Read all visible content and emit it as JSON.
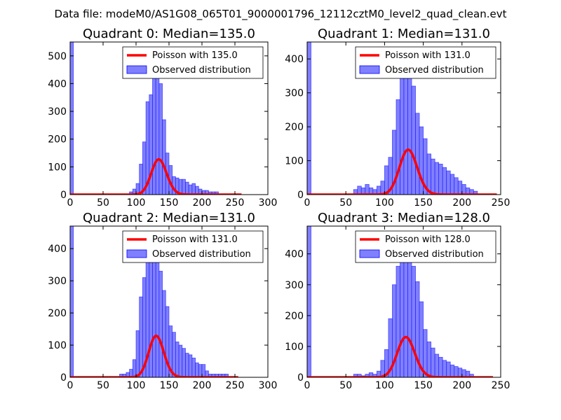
{
  "figure": {
    "suptitle": "Data file: modeM0/AS1G08_065T01_9000001796_12112cztM0_level2_quad_clean.evt",
    "colors": {
      "hist_fill": "#8080ff",
      "hist_edge": "#0000ff",
      "poisson_line": "#ff0000",
      "axes": "#000000"
    }
  },
  "chart_data": [
    {
      "type": "bar",
      "title": "Quadrant 0: Median=135.0",
      "xlim": [
        0,
        300
      ],
      "ylim": [
        0,
        550
      ],
      "xticks": [
        0,
        50,
        100,
        150,
        200,
        250,
        300
      ],
      "yticks": [
        0,
        100,
        200,
        300,
        400,
        500
      ],
      "bin_width": 5,
      "bin_starts": [
        0,
        90,
        95,
        100,
        105,
        110,
        115,
        120,
        125,
        130,
        135,
        140,
        145,
        150,
        155,
        160,
        165,
        170,
        175,
        180,
        185,
        190,
        195,
        200,
        205,
        210,
        215,
        220
      ],
      "counts": [
        550,
        10,
        20,
        40,
        110,
        190,
        335,
        360,
        420,
        445,
        400,
        270,
        150,
        105,
        65,
        60,
        55,
        55,
        45,
        35,
        40,
        30,
        20,
        15,
        15,
        10,
        10,
        10
      ],
      "poisson": {
        "mean": 135.0,
        "area": 3700,
        "x_range": [
          0,
          260
        ]
      },
      "legend": {
        "line_label": "Poisson with 135.0",
        "hist_label": "Observed distribution",
        "loc": "upper right"
      }
    },
    {
      "type": "bar",
      "title": "Quadrant 1: Median=131.0",
      "xlim": [
        0,
        250
      ],
      "ylim": [
        0,
        450
      ],
      "xticks": [
        0,
        50,
        100,
        150,
        200,
        250
      ],
      "yticks": [
        0,
        100,
        200,
        300,
        400
      ],
      "bin_width": 5,
      "bin_starts": [
        0,
        60,
        65,
        70,
        75,
        80,
        85,
        90,
        95,
        100,
        105,
        110,
        115,
        120,
        125,
        130,
        135,
        140,
        145,
        150,
        155,
        160,
        165,
        170,
        175,
        180,
        185,
        190,
        195,
        200,
        205,
        210,
        215
      ],
      "counts": [
        450,
        15,
        25,
        20,
        30,
        20,
        15,
        25,
        40,
        85,
        110,
        190,
        280,
        385,
        430,
        400,
        320,
        240,
        200,
        165,
        120,
        105,
        95,
        90,
        80,
        70,
        60,
        50,
        40,
        30,
        20,
        15,
        10
      ],
      "poisson": {
        "mean": 131.0,
        "area": 3800,
        "x_range": [
          0,
          245
        ]
      },
      "legend": {
        "line_label": "Poisson with 131.0",
        "hist_label": "Observed distribution",
        "loc": "upper right"
      }
    },
    {
      "type": "bar",
      "title": "Quadrant 2: Median=131.0",
      "xlim": [
        0,
        300
      ],
      "ylim": [
        0,
        470
      ],
      "xticks": [
        0,
        50,
        100,
        150,
        200,
        250,
        300
      ],
      "yticks": [
        0,
        100,
        200,
        300,
        400
      ],
      "bin_width": 5,
      "bin_starts": [
        0,
        75,
        80,
        85,
        90,
        95,
        100,
        105,
        110,
        115,
        120,
        125,
        130,
        135,
        140,
        145,
        150,
        155,
        160,
        165,
        170,
        175,
        180,
        185,
        190,
        195,
        200,
        205,
        210,
        215,
        220,
        225,
        230,
        235
      ],
      "counts": [
        470,
        10,
        10,
        15,
        25,
        55,
        145,
        250,
        310,
        430,
        440,
        420,
        370,
        330,
        270,
        220,
        160,
        140,
        110,
        100,
        90,
        75,
        70,
        60,
        45,
        40,
        40,
        20,
        10,
        10,
        10,
        10,
        10,
        10
      ],
      "poisson": {
        "mean": 131.0,
        "area": 3700,
        "x_range": [
          0,
          255
        ]
      },
      "legend": {
        "line_label": "Poisson with 131.0",
        "hist_label": "Observed distribution",
        "loc": "upper right"
      }
    },
    {
      "type": "bar",
      "title": "Quadrant 3: Median=128.0",
      "xlim": [
        0,
        250
      ],
      "ylim": [
        0,
        490
      ],
      "xticks": [
        0,
        50,
        100,
        150,
        200,
        250
      ],
      "yticks": [
        0,
        100,
        200,
        300,
        400
      ],
      "bin_width": 5,
      "bin_starts": [
        0,
        60,
        65,
        70,
        75,
        80,
        85,
        90,
        95,
        100,
        105,
        110,
        115,
        120,
        125,
        130,
        135,
        140,
        145,
        150,
        155,
        160,
        165,
        170,
        175,
        180,
        185,
        190,
        195,
        200,
        205,
        210
      ],
      "counts": [
        490,
        10,
        10,
        5,
        10,
        15,
        10,
        20,
        55,
        90,
        190,
        300,
        360,
        440,
        470,
        430,
        360,
        310,
        245,
        155,
        115,
        95,
        75,
        65,
        55,
        50,
        40,
        35,
        30,
        25,
        20,
        10
      ],
      "poisson": {
        "mean": 128.0,
        "area": 3700,
        "x_range": [
          0,
          240
        ]
      },
      "legend": {
        "line_label": "Poisson with 128.0",
        "hist_label": "Observed distribution",
        "loc": "upper right"
      }
    }
  ]
}
